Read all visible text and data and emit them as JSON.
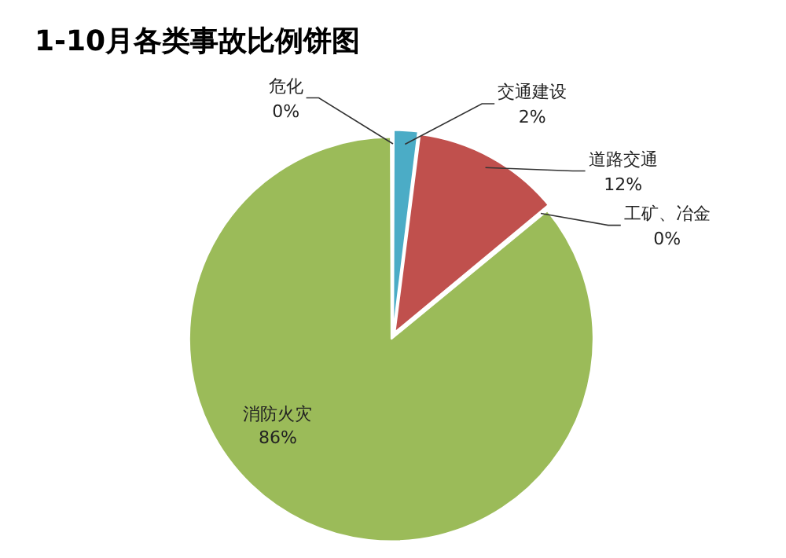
{
  "chart_data": {
    "type": "pie",
    "title": "1-10月各类事故比例饼图",
    "categories": [
      "危化",
      "交通建设",
      "道路交通",
      "工矿、冶金",
      "消防火灾"
    ],
    "values": [
      0,
      2,
      12,
      0,
      86
    ],
    "value_labels": [
      "0%",
      "2%",
      "12%",
      "0%",
      "86%"
    ],
    "colors": [
      "#8064a2",
      "#4bacc6",
      "#c0504d",
      "#f79646",
      "#9bbb59"
    ]
  }
}
